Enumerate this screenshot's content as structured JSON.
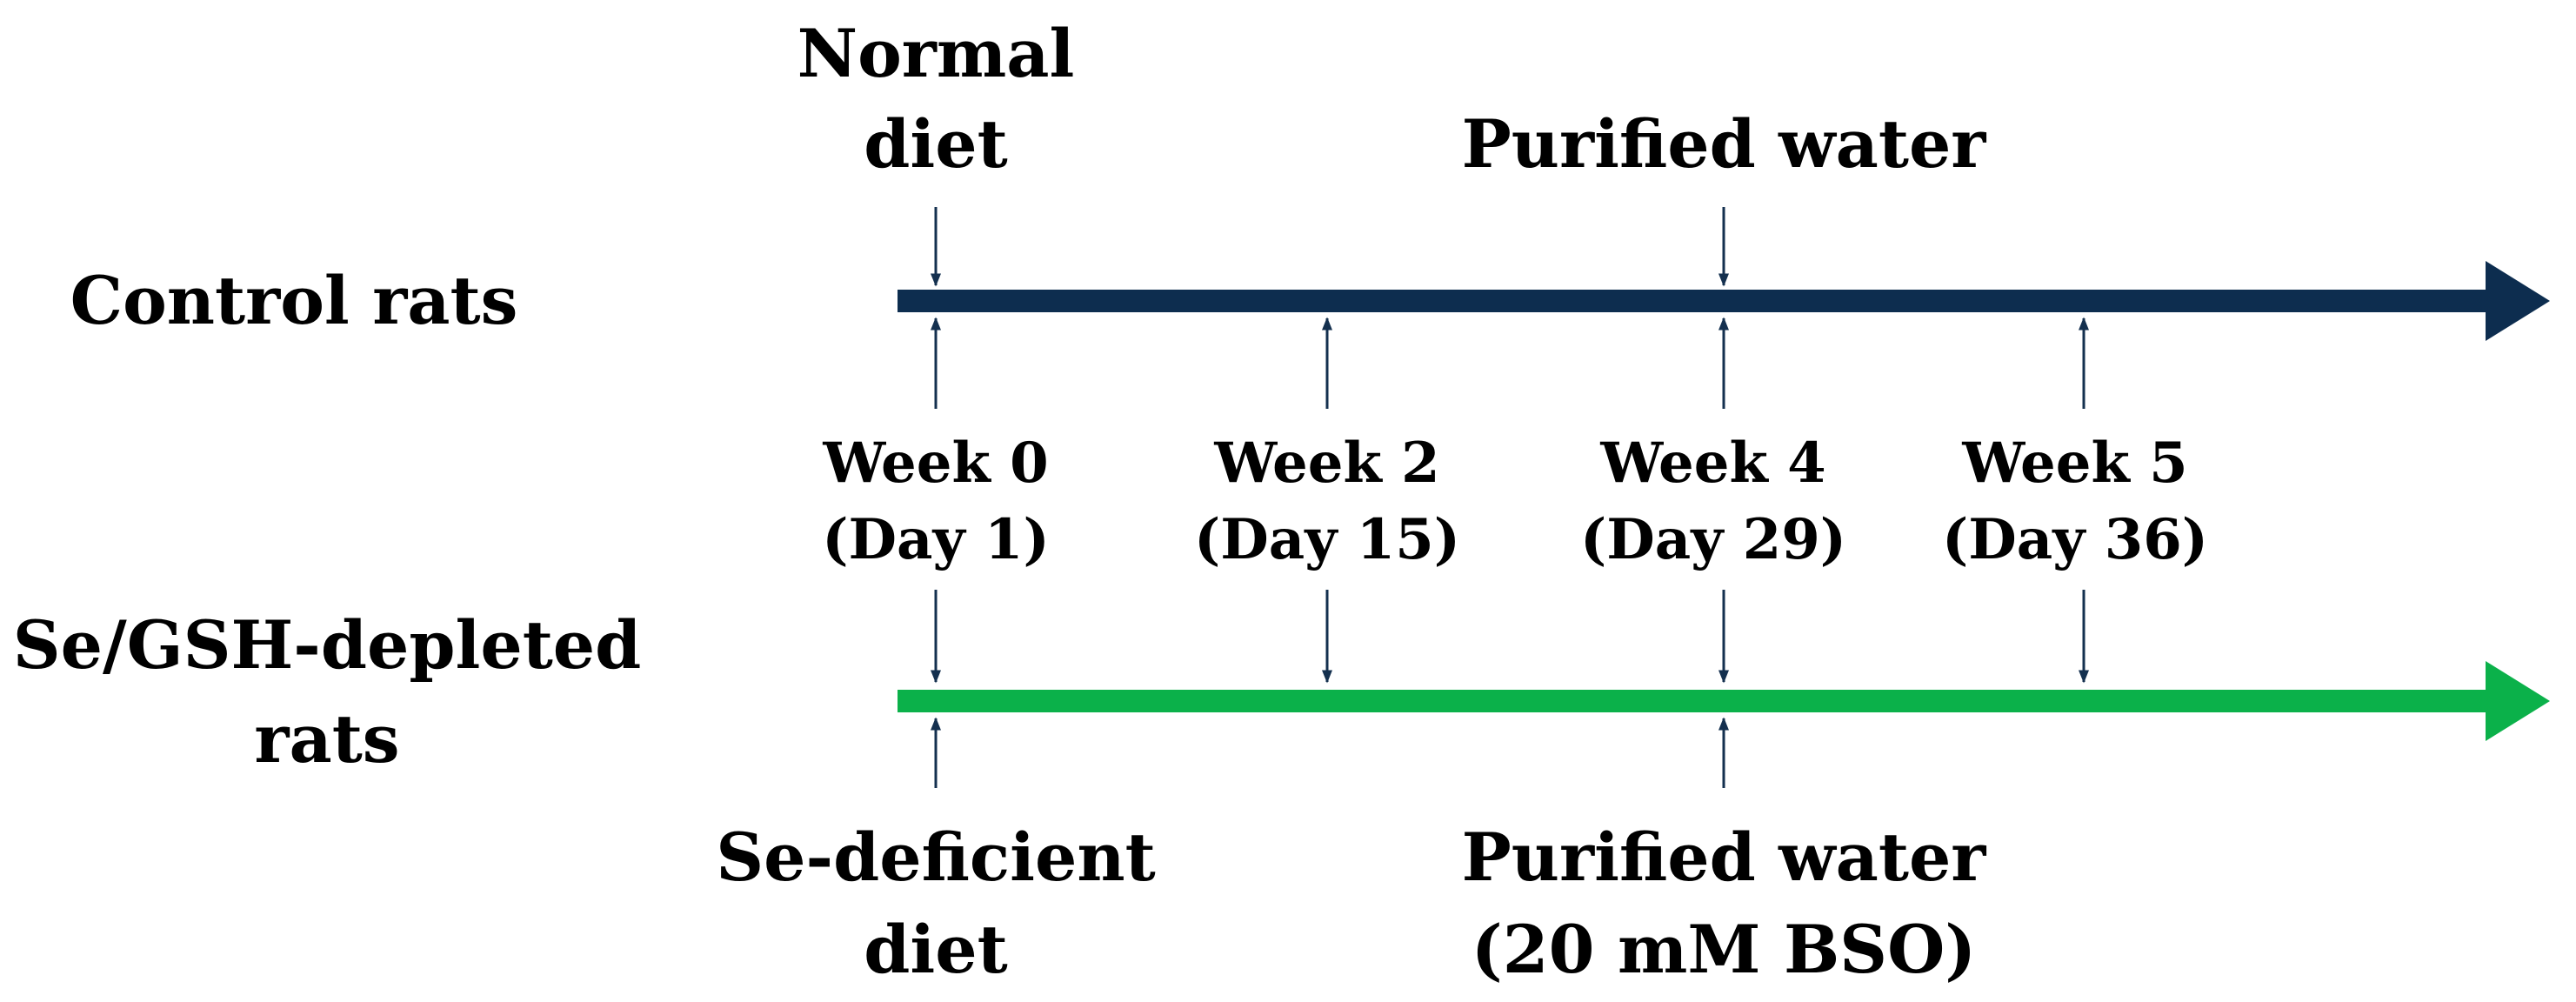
{
  "colors": {
    "control_line": "#0d2d4f",
    "depleted_line": "#0bb14a",
    "connector": "#14304f",
    "text": "#000000"
  },
  "groups": {
    "control": {
      "label": "Control rats",
      "top_annotations": [
        {
          "line1": "Normal",
          "line2": "diet"
        },
        {
          "line1": "Purified water"
        }
      ]
    },
    "depleted": {
      "label_line1": "Se/GSH-depleted",
      "label_line2": "rats",
      "bottom_annotations": [
        {
          "line1": "Se-deficient",
          "line2": "diet"
        },
        {
          "line1": "Purified water",
          "line2": "(20 mM BSO)"
        }
      ]
    }
  },
  "timepoints": [
    {
      "week": "Week 0",
      "day": "(Day 1)"
    },
    {
      "week": "Week 2",
      "day": "(Day 15)"
    },
    {
      "week": "Week 4",
      "day": "(Day 29)"
    },
    {
      "week": "Week 5",
      "day": "(Day 36)"
    }
  ]
}
